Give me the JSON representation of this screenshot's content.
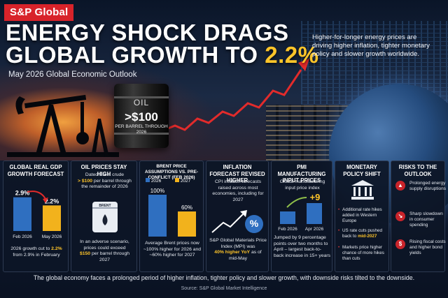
{
  "brand": "S&P Global",
  "title": {
    "line1": "ENERGY SHOCK DRAGS",
    "line2_prefix": "GLOBAL GROWTH TO",
    "line2_highlight": "2.2%"
  },
  "subtitle": "May 2026 Global Economic Outlook",
  "intro": "Higher-for-longer energy prices are driving higher inflation, tighter monetary policy and slower growth worldwide.",
  "barrel": {
    "label": "OIL",
    "price": ">$100",
    "sub": "PER BARREL THROUGH 2026"
  },
  "panels": {
    "gdp": {
      "title": "GLOBAL REAL GDP GROWTH FORECAST",
      "chart_data": {
        "type": "bar",
        "categories": [
          "Feb 2026",
          "May 2026"
        ],
        "values": [
          2.9,
          2.2
        ],
        "value_labels": [
          "2.9%",
          "2.2%"
        ]
      },
      "text_prefix": "2026 growth cut to",
      "text_highlight": "2.2%",
      "text_suffix": "from 2.9% in February"
    },
    "oil": {
      "title": "OIL PRICES STAY HIGH",
      "text1_prefix": "Dated Brent crude",
      "text1_highlight": "> $100",
      "text1_suffix": "per barrel through the remainder of 2026",
      "can_label": "BRENT",
      "text2_prefix": "In an adverse scenario, prices could exceed",
      "text2_highlight": "$150",
      "text2_suffix": "per barrel through 2027"
    },
    "brent": {
      "title": "BRENT PRICE ASSUMPTIONS VS. PRE-CONFLICT (FEB 2026)",
      "chart_data": {
        "type": "bar",
        "series": [
          {
            "name": "2026",
            "value": 100,
            "label": "100%",
            "color": "#2f6fc0"
          },
          {
            "name": "2027",
            "value": 60,
            "label": "60%",
            "color": "#f2b21c"
          }
        ],
        "ylim": [
          0,
          100
        ]
      },
      "text": "Average Brent prices now ~100% higher for 2026 and ~60% higher for 2027"
    },
    "inflation": {
      "title": "INFLATION FORECAST REVISED HIGHER",
      "text1": "CPI inflation forecasts raised across most economies, including for 2027",
      "icon": "%",
      "text2": "S&P Global Materials Price Index (MPI) was",
      "text2_highlight": "40% higher YoY",
      "text2_suffix": "as of mid-May"
    },
    "pmi": {
      "title": "PMI MANUFACTURING INPUT PRICES",
      "text1": "Global manufacturing input price index",
      "chart_data": {
        "type": "bar",
        "categories": [
          "Feb 2026",
          "Apr 2026"
        ],
        "change_label": "+9"
      },
      "text2": "Jumped by 9 percentage points over two months to April – largest back-to-back increase in 15+ years"
    },
    "policy": {
      "title": "MONETARY POLICY SHIFT",
      "bullets": [
        {
          "text": "Additional rate hikes added in Western Europe",
          "highlight": ""
        },
        {
          "text": "US rate cuts pushed back to",
          "highlight": "mid-2027"
        },
        {
          "text": "Markets price higher chance of more hikes than cuts",
          "highlight": ""
        }
      ]
    },
    "risks": {
      "title": "RISKS TO THE OUTLOOK",
      "items": [
        "Prolonged energy supply disruptions",
        "Sharp slowdown in consumer spending",
        "Rising fiscal costs and higher bond yields"
      ]
    }
  },
  "footer": "The global economy faces a prolonged period of higher inflation, tighter policy and slower growth, with downside risks tilted to the downside.",
  "source": "Source: S&P Global Market Intelligence",
  "colors": {
    "red": "#d8232a",
    "gold": "#ffc529",
    "blue": "#2f6fc0"
  }
}
